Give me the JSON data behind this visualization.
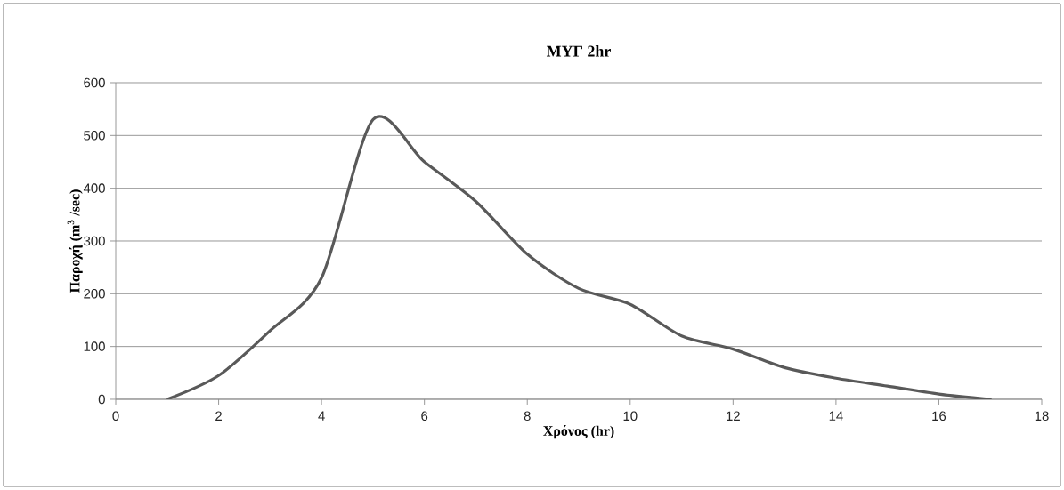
{
  "chart_data": {
    "type": "line",
    "title": "ΜΥΓ 2hr",
    "xlabel": "Χρόνος (hr)",
    "ylabel": "Παροχή (m$^{3}$ /sec)",
    "x": [
      1,
      2,
      3,
      4,
      5,
      6,
      7,
      8,
      9,
      10,
      11,
      12,
      13,
      14,
      15,
      16,
      17
    ],
    "series": [
      {
        "color": "#595959",
        "values": [
          0,
          45,
          130,
          230,
          530,
          450,
          375,
          275,
          210,
          180,
          120,
          95,
          60,
          40,
          25,
          10,
          0
        ]
      }
    ],
    "xlim": [
      0,
      18
    ],
    "xticks": [
      0,
      2,
      4,
      6,
      8,
      10,
      12,
      14,
      16,
      18
    ],
    "ylim": [
      0,
      600
    ],
    "yticks": [
      0,
      100,
      200,
      300,
      400,
      500,
      600
    ],
    "grid": "y",
    "marker": "none",
    "line_style": "solid"
  }
}
